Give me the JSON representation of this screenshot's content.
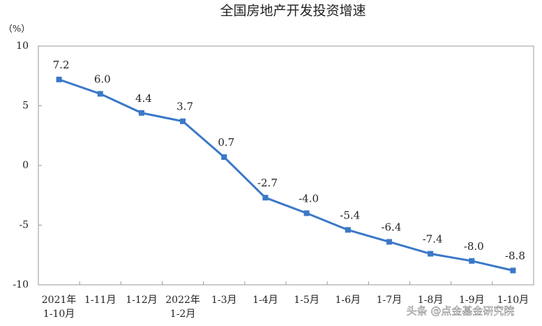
{
  "chart_data": {
    "type": "line",
    "title": "全国房地产开发投资增速",
    "y_unit": "（%）",
    "categories": [
      "2021年\n1-10月",
      "1-11月",
      "1-12月",
      "2022年\n1-2月",
      "1-3月",
      "1-4月",
      "1-5月",
      "1-6月",
      "1-7月",
      "1-8月",
      "1-9月",
      "1-10月"
    ],
    "series": [
      {
        "color": "#3a78c8",
        "values": [
          7.2,
          6.0,
          4.4,
          3.7,
          0.7,
          -2.7,
          -4.0,
          -5.4,
          -6.4,
          -7.4,
          -8.0,
          -8.8
        ],
        "value_labels": [
          "7.2",
          "6.0",
          "4.4",
          "3.7",
          "0.7",
          "-2.7",
          "-4.0",
          "-5.4",
          "-6.4",
          "-7.4",
          "-8.0",
          "-8.8"
        ]
      }
    ],
    "ylim": [
      -10,
      10
    ],
    "yticks": [
      -10,
      -5,
      0,
      5,
      10
    ],
    "grid": false,
    "watermark": "头条 @点金基金研究院"
  }
}
